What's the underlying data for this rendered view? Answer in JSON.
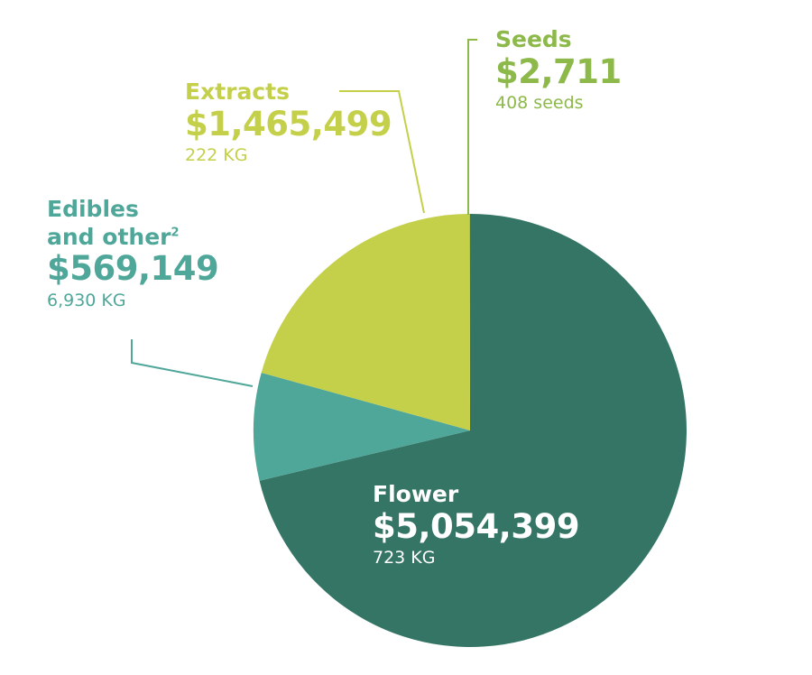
{
  "chart_data": {
    "type": "pie",
    "slices": [
      {
        "name": "Flower",
        "value_label": "$5,054,399",
        "value": 5054399,
        "quantity": "723 KG",
        "color": "#347565"
      },
      {
        "name": "Edibles and other",
        "superscript": "2",
        "value_label": "$569,149",
        "value": 569149,
        "quantity": "6,930 KG",
        "color": "#4fa79a"
      },
      {
        "name": "Extracts",
        "value_label": "$1,465,499",
        "value": 1465499,
        "quantity": "222 KG",
        "color": "#c4d04a"
      },
      {
        "name": "Seeds",
        "value_label": "$2,711",
        "value": 2711,
        "quantity": "408 seeds",
        "color": "#8db84a"
      }
    ]
  },
  "labels": {
    "seeds": {
      "name": "Seeds",
      "value": "$2,711",
      "qty": "408 seeds"
    },
    "extracts": {
      "name": "Extracts",
      "value": "$1,465,499",
      "qty": "222 KG"
    },
    "edibles": {
      "line1": "Edibles",
      "line2": "and other",
      "sup": "2",
      "value": "$569,149",
      "qty": "6,930 KG"
    },
    "flower": {
      "name": "Flower",
      "value": "$5,054,399",
      "qty": "723 KG"
    }
  },
  "colors": {
    "flower": "#347565",
    "edibles": "#4fa79a",
    "extracts": "#c4d04a",
    "seeds": "#8db84a",
    "label_white": "#ffffff"
  }
}
